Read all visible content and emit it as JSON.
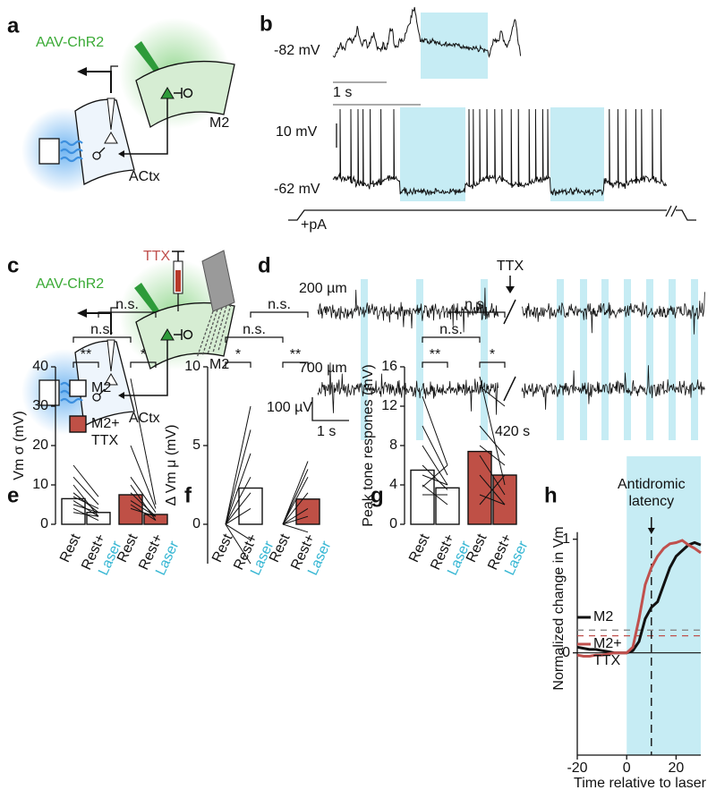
{
  "figure": {
    "panel_labels": [
      "a",
      "b",
      "c",
      "d",
      "e",
      "f",
      "g",
      "h"
    ],
    "a": {
      "virus": "AAV-ChR2",
      "target": "M2",
      "source": "ACtx"
    },
    "b": {
      "rest_potential_1": "-82 mV",
      "time_scale": "1 s",
      "voltage_scale": "10 mV",
      "rest_potential_2": "-62 mV",
      "current": "+pA"
    },
    "c": {
      "drug": "TTX",
      "virus": "AAV-ChR2",
      "target": "M2",
      "source": "ACtx"
    },
    "d": {
      "drug": "TTX",
      "depth_1": "200 µm",
      "depth_2": "700 µm",
      "voltage_scale": "100 µV",
      "time_scale": "1 s",
      "gap": "420 s"
    }
  },
  "chart_data": [
    {
      "type": "bar",
      "ylabel": "Vm σ (mV)",
      "categories": [
        "Rest",
        "Rest+",
        "Rest",
        "Rest+"
      ],
      "category_sublabels": [
        null,
        "Laser",
        null,
        "Laser"
      ],
      "sublabel_color": "#35b6d3",
      "ylim": [
        0,
        40
      ],
      "yticks": [
        0,
        10,
        20,
        30,
        40
      ],
      "legend": true,
      "series": [
        {
          "name": "M2",
          "color": "#ffffff",
          "values": [
            6.5,
            3,
            null,
            null
          ],
          "cells": [
            [
              15,
              7
            ],
            [
              12,
              5
            ],
            [
              10,
              2
            ],
            [
              8,
              3
            ],
            [
              7,
              4
            ],
            [
              6,
              2
            ],
            [
              5,
              3
            ],
            [
              4,
              1
            ],
            [
              3,
              2
            ]
          ]
        },
        {
          "name": "M2+ TTX",
          "color": "#bf5046",
          "values": [
            null,
            null,
            7.5,
            2.5
          ],
          "cells": [
            [
              37,
              5
            ],
            [
              20,
              4
            ],
            [
              12,
              3
            ],
            [
              10,
              1
            ],
            [
              8,
              2
            ],
            [
              6,
              2
            ],
            [
              5,
              1
            ],
            [
              4,
              2
            ]
          ]
        }
      ],
      "brackets": [
        {
          "label": "**",
          "pair": [
            0,
            1
          ]
        },
        {
          "label": "*",
          "pair": [
            2,
            3
          ]
        },
        {
          "label": "n.s.",
          "pair": [
            0,
            2
          ]
        },
        {
          "label": "n.s.",
          "pair": [
            1,
            3
          ]
        }
      ]
    },
    {
      "type": "bar",
      "ylabel": "Δ Vm μ (mV)",
      "categories": [
        "Rest",
        "Rest+",
        "Rest",
        "Rest+"
      ],
      "category_sublabels": [
        null,
        "Laser",
        null,
        "Laser"
      ],
      "sublabel_color": "#35b6d3",
      "ylim": [
        -2.5,
        10
      ],
      "yticks": [
        0,
        5,
        10
      ],
      "legend": false,
      "series": [
        {
          "name": "M2",
          "color": "#ffffff",
          "values": [
            0,
            2.3,
            null,
            null
          ],
          "cells": [
            [
              0,
              7.5
            ],
            [
              0,
              6
            ],
            [
              0,
              4.5
            ],
            [
              0,
              3
            ],
            [
              0,
              2
            ],
            [
              0,
              1
            ],
            [
              0,
              -1
            ],
            [
              0,
              -2.5
            ]
          ]
        },
        {
          "name": "M2+ TTX",
          "color": "#bf5046",
          "values": [
            null,
            null,
            0,
            1.6
          ],
          "cells": [
            [
              0,
              4
            ],
            [
              0,
              3.5
            ],
            [
              0,
              3
            ],
            [
              0,
              2
            ],
            [
              0,
              1
            ],
            [
              0,
              0.5
            ],
            [
              0,
              -0.5
            ]
          ]
        }
      ],
      "brackets": [
        {
          "label": "*",
          "pair": [
            0,
            1
          ]
        },
        {
          "label": "**",
          "pair": [
            2,
            3
          ]
        },
        {
          "label": "n.s.",
          "pair": [
            0,
            2
          ]
        },
        {
          "label": "n.s.",
          "pair": [
            1,
            3
          ]
        }
      ]
    },
    {
      "type": "bar",
      "ylabel": "Peak tone respones (mV)",
      "categories": [
        "Rest",
        "Rest+",
        "Rest",
        "Rest+"
      ],
      "category_sublabels": [
        null,
        "Laser",
        null,
        "Laser"
      ],
      "sublabel_color": "#35b6d3",
      "ylim": [
        0,
        16
      ],
      "yticks": [
        0,
        4,
        8,
        12,
        16
      ],
      "legend": false,
      "series": [
        {
          "name": "M2",
          "color": "#ffffff",
          "values": [
            5.5,
            3.7,
            null,
            null
          ],
          "cells": [
            [
              13,
              6
            ],
            [
              10,
              5
            ],
            [
              8,
              4
            ],
            [
              6,
              3.5
            ],
            [
              5,
              4
            ],
            [
              4,
              2
            ],
            [
              3,
              3
            ],
            [
              3.8,
              6
            ]
          ]
        },
        {
          "name": "M2+ TTX",
          "color": "#bf5046",
          "values": [
            null,
            null,
            7.4,
            5
          ],
          "cells": [
            [
              15,
              4
            ],
            [
              14,
              12
            ],
            [
              10,
              7
            ],
            [
              8,
              6
            ],
            [
              7,
              3
            ],
            [
              5,
              2
            ],
            [
              3,
              2
            ],
            [
              2,
              5
            ]
          ]
        }
      ],
      "brackets": [
        {
          "label": "**",
          "pair": [
            0,
            1
          ]
        },
        {
          "label": "*",
          "pair": [
            2,
            3
          ]
        },
        {
          "label": "n.s.",
          "pair": [
            0,
            2
          ]
        },
        {
          "label": "n.s.",
          "pair": [
            1,
            3
          ]
        }
      ]
    },
    {
      "type": "line",
      "xlabel": "Time relative to laser onset (ms)",
      "ylabel": "Normalized change in Vm",
      "x": [
        -20,
        -17.5,
        -15,
        -12.5,
        -10,
        -7.5,
        -5,
        -2.5,
        0,
        2.5,
        5,
        7.5,
        10,
        12.5,
        15,
        17.5,
        20,
        22.5,
        25,
        27.5,
        30
      ],
      "series": [
        {
          "name": "M2",
          "color": "#111111",
          "values": [
            0.05,
            0.04,
            0.03,
            0.03,
            0.02,
            0.01,
            0,
            0,
            0,
            0.02,
            0.1,
            0.3,
            0.4,
            0.45,
            0.6,
            0.75,
            0.85,
            0.9,
            0.95,
            0.97,
            0.95
          ]
        },
        {
          "name": "M2+ TTX",
          "color": "#c0504d",
          "values": [
            -0.02,
            -0.03,
            -0.03,
            -0.02,
            -0.02,
            -0.01,
            0,
            0,
            0,
            0.05,
            0.3,
            0.6,
            0.75,
            0.85,
            0.92,
            0.96,
            0.97,
            0.99,
            0.95,
            0.92,
            0.88
          ]
        }
      ],
      "xlim": [
        -20,
        30
      ],
      "ylim": [
        -0.9,
        1.73
      ],
      "xticks": [
        -20,
        0,
        20
      ],
      "yticks": [
        0,
        1
      ],
      "shade_from": 0,
      "shade_color": "#c6ecf4",
      "marker_x": 10,
      "marker_label": "Antidromic latency",
      "thresholds": [
        {
          "value": 0.2,
          "color": "#888888"
        },
        {
          "value": 0.15,
          "color": "#c0504d"
        }
      ]
    }
  ]
}
